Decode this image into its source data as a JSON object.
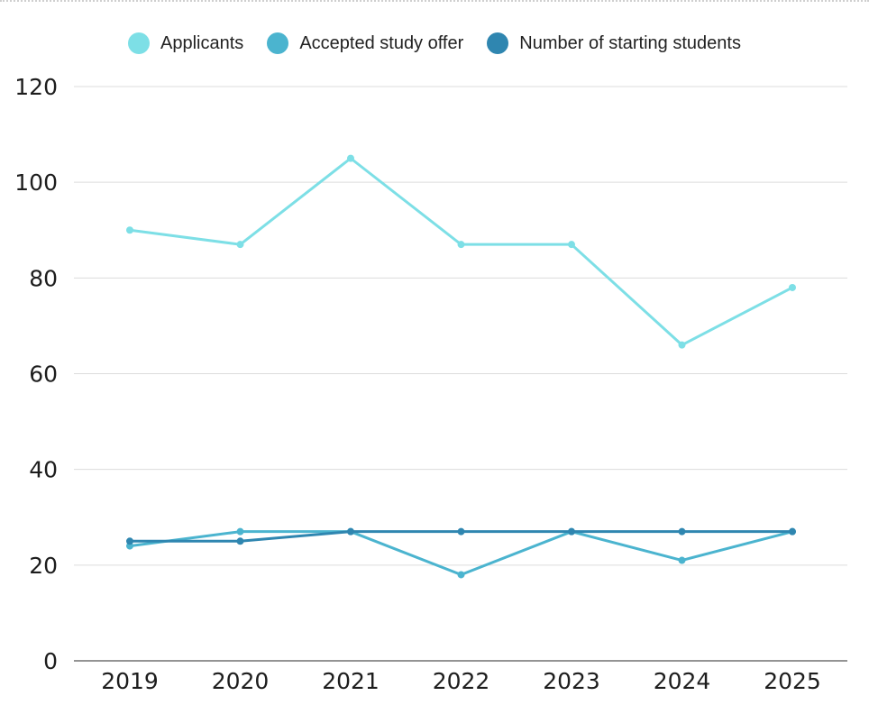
{
  "chart_data": {
    "type": "line",
    "categories": [
      "2019",
      "2020",
      "2021",
      "2022",
      "2023",
      "2024",
      "2025"
    ],
    "series": [
      {
        "name": "Applicants",
        "color": "#7ddfe6",
        "values": [
          90,
          87,
          105,
          87,
          87,
          66,
          78
        ]
      },
      {
        "name": "Accepted study offer",
        "color": "#4bb4cf",
        "values": [
          24,
          27,
          27,
          18,
          27,
          21,
          27
        ]
      },
      {
        "name": "Number of starting students",
        "color": "#2f86b0",
        "values": [
          25,
          25,
          27,
          27,
          27,
          27,
          27
        ]
      }
    ],
    "yticks": [
      "0",
      "20",
      "40",
      "60",
      "80",
      "100",
      "120"
    ],
    "ylim": [
      0,
      120
    ],
    "grid": true,
    "legend": "top-center"
  }
}
